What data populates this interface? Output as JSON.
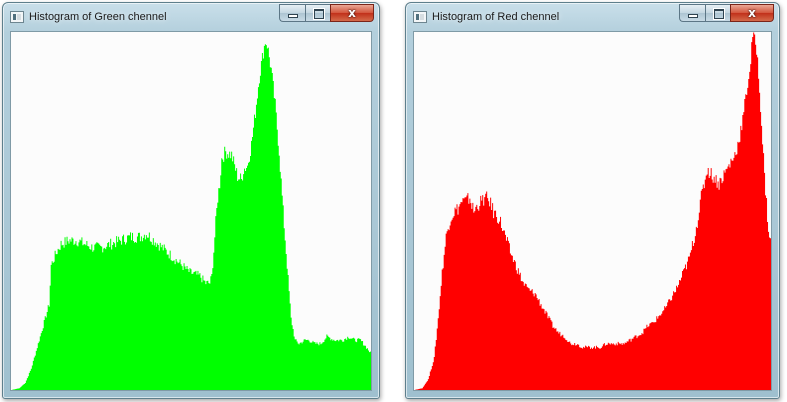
{
  "windows": [
    {
      "title": "Histogram of Green chennel",
      "color": "#00ff00",
      "buttons": {
        "minimize": "minimize",
        "maximize": "maximize",
        "close": "x"
      }
    },
    {
      "title": "Histogram of Red chennel",
      "color": "#ff0000",
      "buttons": {
        "minimize": "minimize",
        "maximize": "maximize",
        "close": "x"
      }
    }
  ],
  "chart_data": [
    {
      "type": "area",
      "series": [
        {
          "color": "#00ff00"
        }
      ],
      "x": [
        0,
        8,
        14,
        20,
        26,
        32,
        38,
        40,
        46,
        50,
        58,
        66,
        74,
        82,
        90,
        100,
        110,
        120,
        130,
        136,
        140,
        148,
        156,
        164,
        172,
        180,
        190,
        196,
        200,
        202,
        204,
        206,
        208,
        210,
        212,
        216,
        222,
        228,
        232,
        234,
        238,
        242,
        246,
        250,
        254,
        256,
        258,
        262,
        266,
        270,
        274,
        278,
        282,
        286,
        290,
        296,
        300,
        306,
        312,
        318,
        326,
        334,
        340,
        346,
        352,
        358,
        363
      ],
      "values": [
        0,
        0.5,
        2,
        6,
        12,
        18,
        24,
        35,
        39,
        41,
        42,
        42,
        41,
        40,
        40,
        41,
        42,
        43,
        43,
        44,
        43,
        41,
        39,
        37,
        35,
        33,
        32,
        30,
        30,
        32,
        39,
        47,
        54,
        58,
        65,
        67,
        66,
        60,
        59,
        62,
        63,
        69,
        78,
        88,
        95,
        98,
        97,
        90,
        80,
        67,
        50,
        35,
        20,
        14,
        13,
        14,
        14,
        13,
        13,
        15,
        14,
        14,
        15,
        14,
        14,
        12,
        10
      ],
      "ylim": [
        0,
        100
      ]
    },
    {
      "type": "area",
      "series": [
        {
          "color": "#ff0000"
        }
      ],
      "x": [
        0,
        8,
        14,
        20,
        24,
        28,
        32,
        36,
        40,
        44,
        48,
        52,
        56,
        60,
        64,
        68,
        72,
        76,
        80,
        86,
        92,
        98,
        104,
        110,
        116,
        122,
        128,
        134,
        140,
        146,
        152,
        158,
        164,
        170,
        176,
        182,
        188,
        194,
        200,
        206,
        212,
        218,
        224,
        230,
        236,
        242,
        248,
        254,
        260,
        266,
        272,
        278,
        284,
        290,
        296,
        302,
        308,
        312,
        316,
        320,
        324,
        328,
        332,
        336,
        340,
        342,
        346,
        350,
        354,
        358,
        361
      ],
      "values": [
        0,
        0.5,
        3,
        9,
        20,
        33,
        43,
        48,
        50,
        51,
        53,
        53,
        54,
        50,
        52,
        53,
        54,
        53,
        50,
        48,
        43,
        38,
        34,
        30,
        28,
        27,
        24,
        21,
        18,
        16,
        15,
        13,
        13,
        12,
        12,
        12,
        12,
        13,
        13,
        13,
        13,
        14,
        15,
        16,
        18,
        19,
        21,
        23,
        26,
        29,
        33,
        37,
        44,
        54,
        62,
        60,
        58,
        60,
        62,
        64,
        66,
        70,
        76,
        84,
        92,
        100,
        96,
        80,
        60,
        45,
        40
      ],
      "ylim": [
        0,
        100
      ]
    }
  ]
}
